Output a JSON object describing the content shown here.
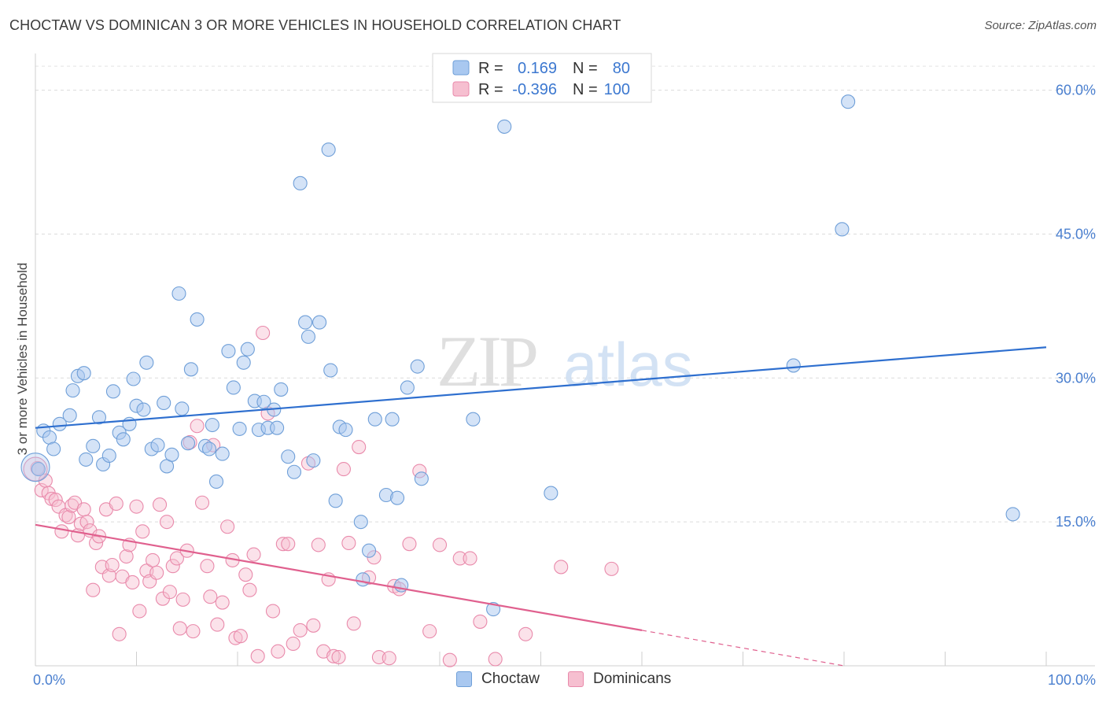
{
  "title": "CHOCTAW VS DOMINICAN 3 OR MORE VEHICLES IN HOUSEHOLD CORRELATION CHART",
  "source": "Source: ZipAtlas.com",
  "watermark_zip": "ZIP",
  "watermark_atlas": "atlas",
  "colors": {
    "choctaw_fill": "#a9c8f0",
    "choctaw_stroke": "#6f9fd8",
    "choctaw_line": "#2e6fcf",
    "dominican_fill": "#f6bfd0",
    "dominican_stroke": "#e98aab",
    "dominican_line": "#e0608e",
    "accent_text": "#3c78d0"
  },
  "legend": {
    "row1": {
      "r_label": "R =",
      "r_value": "0.169",
      "n_label": "N =",
      "n_value": "80"
    },
    "row2": {
      "r_label": "R =",
      "r_value": "-0.396",
      "n_label": "N =",
      "n_value": "100"
    }
  },
  "chart_data": {
    "type": "scatter",
    "title": "CHOCTAW VS DOMINICAN 3 OR MORE VEHICLES IN HOUSEHOLD CORRELATION CHART",
    "xlabel": "",
    "ylabel": "3 or more Vehicles in Household",
    "xlim": [
      0,
      100
    ],
    "ylim": [
      0,
      63
    ],
    "x_tick_labels": [
      "0.0%",
      "100.0%"
    ],
    "y_ticks": [
      15,
      30,
      45,
      60
    ],
    "y_tick_labels": [
      "15.0%",
      "30.0%",
      "45.0%",
      "60.0%"
    ],
    "grid": true,
    "legend_position": "top-center",
    "series": [
      {
        "name": "Choctaw",
        "r": 0.169,
        "n": 80,
        "trend": {
          "x": [
            0,
            100
          ],
          "y": [
            24.8,
            33.2
          ]
        },
        "points": [
          [
            0.3,
            20.5
          ],
          [
            0.8,
            24.5
          ],
          [
            1.4,
            23.8
          ],
          [
            1.8,
            22.6
          ],
          [
            2.4,
            25.2
          ],
          [
            3.4,
            26.1
          ],
          [
            3.7,
            28.7
          ],
          [
            4.2,
            30.2
          ],
          [
            4.8,
            30.5
          ],
          [
            5.7,
            22.9
          ],
          [
            6.3,
            25.9
          ],
          [
            6.7,
            21.0
          ],
          [
            7.3,
            21.9
          ],
          [
            7.7,
            28.6
          ],
          [
            8.3,
            24.3
          ],
          [
            8.7,
            23.6
          ],
          [
            9.3,
            25.2
          ],
          [
            9.7,
            29.9
          ],
          [
            10.0,
            27.1
          ],
          [
            10.7,
            26.7
          ],
          [
            11.0,
            31.6
          ],
          [
            11.5,
            22.6
          ],
          [
            12.1,
            23.0
          ],
          [
            12.7,
            27.4
          ],
          [
            13.0,
            20.8
          ],
          [
            13.5,
            22.0
          ],
          [
            14.2,
            38.8
          ],
          [
            14.5,
            26.8
          ],
          [
            15.1,
            23.2
          ],
          [
            15.4,
            30.9
          ],
          [
            16.0,
            36.1
          ],
          [
            16.8,
            22.9
          ],
          [
            17.2,
            22.6
          ],
          [
            17.5,
            25.1
          ],
          [
            17.9,
            19.2
          ],
          [
            18.5,
            22.1
          ],
          [
            19.1,
            32.8
          ],
          [
            19.6,
            29.0
          ],
          [
            20.2,
            24.7
          ],
          [
            20.6,
            31.6
          ],
          [
            21.0,
            33.0
          ],
          [
            21.7,
            27.6
          ],
          [
            22.1,
            24.6
          ],
          [
            22.6,
            27.5
          ],
          [
            23.0,
            24.8
          ],
          [
            23.6,
            26.7
          ],
          [
            23.9,
            24.8
          ],
          [
            24.3,
            28.8
          ],
          [
            25.0,
            21.8
          ],
          [
            25.6,
            20.2
          ],
          [
            26.2,
            50.3
          ],
          [
            26.7,
            35.8
          ],
          [
            27.0,
            34.3
          ],
          [
            27.5,
            21.4
          ],
          [
            28.1,
            35.8
          ],
          [
            29.0,
            53.8
          ],
          [
            29.2,
            30.8
          ],
          [
            29.7,
            17.2
          ],
          [
            30.1,
            24.9
          ],
          [
            30.7,
            24.6
          ],
          [
            32.2,
            15.0
          ],
          [
            32.4,
            9.0
          ],
          [
            33.6,
            25.7
          ],
          [
            34.7,
            17.8
          ],
          [
            35.3,
            25.7
          ],
          [
            35.8,
            17.5
          ],
          [
            36.2,
            8.4
          ],
          [
            36.8,
            29.0
          ],
          [
            37.8,
            31.2
          ],
          [
            38.2,
            19.5
          ],
          [
            43.3,
            25.7
          ],
          [
            45.3,
            5.9
          ],
          [
            46.4,
            56.2
          ],
          [
            51.0,
            18.0
          ],
          [
            75.0,
            31.3
          ],
          [
            79.8,
            45.5
          ],
          [
            80.4,
            58.8
          ],
          [
            96.7,
            15.8
          ],
          [
            5.0,
            21.5
          ],
          [
            33.0,
            12.0
          ]
        ]
      },
      {
        "name": "Dominicans",
        "r": -0.396,
        "n": 100,
        "trend": {
          "x": [
            0,
            60
          ],
          "y": [
            14.7,
            3.7
          ]
        },
        "trend_dashed": {
          "x": [
            60,
            80
          ],
          "y": [
            3.7,
            0.0
          ]
        },
        "points": [
          [
            0.2,
            20.6
          ],
          [
            0.6,
            18.3
          ],
          [
            1.0,
            19.3
          ],
          [
            1.3,
            18.0
          ],
          [
            1.6,
            17.4
          ],
          [
            2.0,
            17.3
          ],
          [
            2.3,
            16.6
          ],
          [
            2.6,
            14.0
          ],
          [
            3.0,
            15.7
          ],
          [
            3.3,
            15.5
          ],
          [
            3.6,
            16.7
          ],
          [
            3.9,
            17.0
          ],
          [
            4.2,
            13.6
          ],
          [
            4.5,
            14.8
          ],
          [
            4.8,
            16.3
          ],
          [
            5.1,
            15.0
          ],
          [
            5.4,
            14.1
          ],
          [
            5.7,
            7.9
          ],
          [
            6.0,
            12.8
          ],
          [
            6.3,
            13.5
          ],
          [
            6.6,
            10.3
          ],
          [
            7.0,
            16.3
          ],
          [
            7.3,
            9.4
          ],
          [
            7.6,
            10.5
          ],
          [
            8.0,
            16.9
          ],
          [
            8.3,
            3.3
          ],
          [
            8.6,
            9.3
          ],
          [
            9.0,
            11.4
          ],
          [
            9.3,
            12.6
          ],
          [
            9.6,
            8.7
          ],
          [
            10.0,
            16.6
          ],
          [
            10.3,
            5.7
          ],
          [
            10.6,
            14.0
          ],
          [
            11.0,
            9.9
          ],
          [
            11.3,
            8.8
          ],
          [
            11.6,
            11.0
          ],
          [
            12.0,
            9.7
          ],
          [
            12.3,
            16.8
          ],
          [
            12.6,
            7.0
          ],
          [
            13.0,
            15.0
          ],
          [
            13.3,
            7.7
          ],
          [
            13.6,
            10.4
          ],
          [
            14.0,
            11.2
          ],
          [
            14.3,
            3.9
          ],
          [
            14.6,
            6.9
          ],
          [
            15.0,
            12.0
          ],
          [
            15.3,
            23.3
          ],
          [
            15.6,
            3.6
          ],
          [
            16.0,
            25.0
          ],
          [
            16.5,
            17.0
          ],
          [
            17.0,
            10.4
          ],
          [
            17.3,
            7.2
          ],
          [
            17.6,
            23.0
          ],
          [
            18.0,
            4.3
          ],
          [
            18.5,
            6.6
          ],
          [
            19.0,
            14.5
          ],
          [
            19.5,
            11.0
          ],
          [
            19.8,
            2.9
          ],
          [
            20.3,
            3.1
          ],
          [
            20.8,
            9.5
          ],
          [
            21.2,
            7.9
          ],
          [
            21.6,
            11.6
          ],
          [
            22.0,
            1.0
          ],
          [
            22.5,
            34.7
          ],
          [
            23.0,
            26.3
          ],
          [
            23.5,
            5.7
          ],
          [
            24.0,
            1.5
          ],
          [
            24.5,
            12.7
          ],
          [
            25.0,
            12.7
          ],
          [
            25.5,
            2.3
          ],
          [
            26.2,
            3.7
          ],
          [
            27.0,
            21.1
          ],
          [
            27.5,
            4.2
          ],
          [
            28.0,
            12.6
          ],
          [
            28.5,
            1.5
          ],
          [
            29.0,
            9.0
          ],
          [
            29.5,
            1.0
          ],
          [
            30.0,
            0.9
          ],
          [
            30.5,
            20.5
          ],
          [
            31.0,
            12.8
          ],
          [
            31.5,
            4.4
          ],
          [
            32.0,
            22.8
          ],
          [
            33.0,
            9.2
          ],
          [
            33.5,
            11.3
          ],
          [
            34.0,
            0.9
          ],
          [
            35.0,
            0.8
          ],
          [
            35.5,
            8.3
          ],
          [
            36.0,
            8.0
          ],
          [
            37.0,
            12.7
          ],
          [
            38.0,
            20.3
          ],
          [
            39.0,
            3.6
          ],
          [
            40.0,
            12.6
          ],
          [
            41.0,
            0.6
          ],
          [
            42.0,
            11.2
          ],
          [
            43.0,
            11.2
          ],
          [
            44.0,
            4.6
          ],
          [
            45.5,
            0.7
          ],
          [
            48.5,
            3.3
          ],
          [
            52.0,
            10.3
          ],
          [
            57.0,
            10.1
          ]
        ]
      }
    ]
  },
  "bottom_legend": {
    "items": [
      {
        "label": "Choctaw"
      },
      {
        "label": "Dominicans"
      }
    ]
  }
}
